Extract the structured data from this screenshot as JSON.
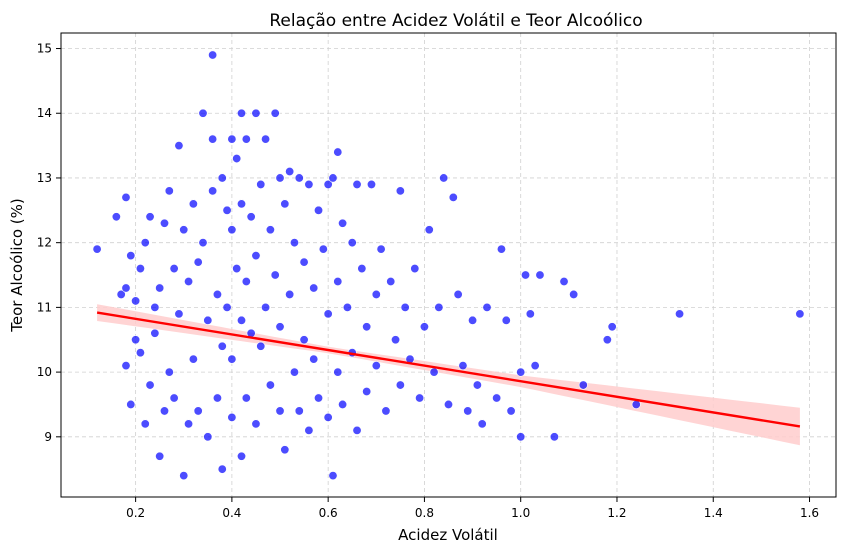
{
  "chart_data": {
    "type": "scatter",
    "title": "Relação entre Acidez Volátil e Teor Alcoólico",
    "xlabel": "Acidez Volátil",
    "ylabel": "Teor Alcoólico (%)",
    "xlim": [
      0.045,
      1.655
    ],
    "ylim": [
      8.07,
      15.24
    ],
    "xticks": [
      0.2,
      0.4,
      0.6,
      0.8,
      1.0,
      1.2,
      1.4,
      1.6
    ],
    "xtick_labels": [
      "0.2",
      "0.4",
      "0.6",
      "0.8",
      "1.0",
      "1.2",
      "1.4",
      "1.6"
    ],
    "yticks": [
      9,
      10,
      11,
      12,
      13,
      14,
      15
    ],
    "ytick_labels": [
      "9",
      "10",
      "11",
      "12",
      "13",
      "14",
      "15"
    ],
    "grid": true,
    "point_color": "#0000ff",
    "regression": {
      "x": [
        0.12,
        1.58
      ],
      "y": [
        10.92,
        9.16
      ],
      "line_color": "#ff0000",
      "band_color": "#ffcccc",
      "band_halfwidth_at_x": [
        [
          0.12,
          0.13
        ],
        [
          0.6,
          0.05
        ],
        [
          1.0,
          0.09
        ],
        [
          1.58,
          0.29
        ]
      ]
    },
    "points": [
      [
        0.12,
        11.9
      ],
      [
        0.16,
        12.4
      ],
      [
        0.17,
        11.2
      ],
      [
        0.18,
        12.7
      ],
      [
        0.18,
        11.3
      ],
      [
        0.18,
        10.1
      ],
      [
        0.19,
        9.5
      ],
      [
        0.19,
        11.8
      ],
      [
        0.2,
        10.5
      ],
      [
        0.2,
        11.1
      ],
      [
        0.21,
        10.3
      ],
      [
        0.21,
        11.6
      ],
      [
        0.22,
        12.0
      ],
      [
        0.22,
        9.2
      ],
      [
        0.23,
        12.4
      ],
      [
        0.23,
        9.8
      ],
      [
        0.24,
        11.0
      ],
      [
        0.24,
        10.6
      ],
      [
        0.25,
        8.7
      ],
      [
        0.25,
        11.3
      ],
      [
        0.26,
        12.3
      ],
      [
        0.26,
        9.4
      ],
      [
        0.27,
        10.0
      ],
      [
        0.27,
        12.8
      ],
      [
        0.28,
        11.6
      ],
      [
        0.28,
        9.6
      ],
      [
        0.29,
        13.5
      ],
      [
        0.29,
        10.9
      ],
      [
        0.3,
        12.2
      ],
      [
        0.3,
        8.4
      ],
      [
        0.31,
        11.4
      ],
      [
        0.31,
        9.2
      ],
      [
        0.32,
        12.6
      ],
      [
        0.32,
        10.2
      ],
      [
        0.33,
        11.7
      ],
      [
        0.33,
        9.4
      ],
      [
        0.34,
        14.0
      ],
      [
        0.34,
        12.0
      ],
      [
        0.35,
        10.8
      ],
      [
        0.35,
        9.0
      ],
      [
        0.36,
        14.9
      ],
      [
        0.36,
        13.6
      ],
      [
        0.36,
        12.8
      ],
      [
        0.37,
        11.2
      ],
      [
        0.37,
        9.6
      ],
      [
        0.38,
        13.0
      ],
      [
        0.38,
        10.4
      ],
      [
        0.38,
        8.5
      ],
      [
        0.39,
        12.5
      ],
      [
        0.39,
        11.0
      ],
      [
        0.4,
        13.6
      ],
      [
        0.4,
        12.2
      ],
      [
        0.4,
        10.2
      ],
      [
        0.4,
        9.3
      ],
      [
        0.41,
        13.3
      ],
      [
        0.41,
        11.6
      ],
      [
        0.42,
        14.0
      ],
      [
        0.42,
        12.6
      ],
      [
        0.42,
        10.8
      ],
      [
        0.42,
        8.7
      ],
      [
        0.43,
        13.6
      ],
      [
        0.43,
        11.4
      ],
      [
        0.43,
        9.6
      ],
      [
        0.44,
        12.4
      ],
      [
        0.44,
        10.6
      ],
      [
        0.45,
        14.0
      ],
      [
        0.45,
        11.8
      ],
      [
        0.45,
        9.2
      ],
      [
        0.46,
        12.9
      ],
      [
        0.46,
        10.4
      ],
      [
        0.47,
        13.6
      ],
      [
        0.47,
        11.0
      ],
      [
        0.48,
        12.2
      ],
      [
        0.48,
        9.8
      ],
      [
        0.49,
        14.0
      ],
      [
        0.49,
        11.5
      ],
      [
        0.5,
        13.0
      ],
      [
        0.5,
        10.7
      ],
      [
        0.5,
        9.4
      ],
      [
        0.51,
        12.6
      ],
      [
        0.51,
        8.8
      ],
      [
        0.52,
        13.1
      ],
      [
        0.52,
        11.2
      ],
      [
        0.53,
        10.0
      ],
      [
        0.53,
        12.0
      ],
      [
        0.54,
        13.0
      ],
      [
        0.54,
        9.4
      ],
      [
        0.55,
        11.7
      ],
      [
        0.55,
        10.5
      ],
      [
        0.56,
        12.9
      ],
      [
        0.56,
        9.1
      ],
      [
        0.57,
        11.3
      ],
      [
        0.57,
        10.2
      ],
      [
        0.58,
        12.5
      ],
      [
        0.58,
        9.6
      ],
      [
        0.59,
        11.9
      ],
      [
        0.6,
        12.9
      ],
      [
        0.6,
        10.9
      ],
      [
        0.6,
        9.3
      ],
      [
        0.61,
        13.0
      ],
      [
        0.61,
        8.4
      ],
      [
        0.62,
        13.4
      ],
      [
        0.62,
        11.4
      ],
      [
        0.62,
        10.0
      ],
      [
        0.63,
        12.3
      ],
      [
        0.63,
        9.5
      ],
      [
        0.64,
        11.0
      ],
      [
        0.65,
        12.0
      ],
      [
        0.65,
        10.3
      ],
      [
        0.66,
        12.9
      ],
      [
        0.66,
        9.1
      ],
      [
        0.67,
        11.6
      ],
      [
        0.68,
        10.7
      ],
      [
        0.68,
        9.7
      ],
      [
        0.69,
        12.9
      ],
      [
        0.7,
        11.2
      ],
      [
        0.7,
        10.1
      ],
      [
        0.71,
        11.9
      ],
      [
        0.72,
        9.4
      ],
      [
        0.73,
        11.4
      ],
      [
        0.74,
        10.5
      ],
      [
        0.75,
        12.8
      ],
      [
        0.75,
        9.8
      ],
      [
        0.76,
        11.0
      ],
      [
        0.77,
        10.2
      ],
      [
        0.78,
        11.6
      ],
      [
        0.79,
        9.6
      ],
      [
        0.8,
        10.7
      ],
      [
        0.81,
        12.2
      ],
      [
        0.82,
        10.0
      ],
      [
        0.83,
        11.0
      ],
      [
        0.84,
        13.0
      ],
      [
        0.85,
        9.5
      ],
      [
        0.86,
        12.7
      ],
      [
        0.87,
        11.2
      ],
      [
        0.88,
        10.1
      ],
      [
        0.89,
        9.4
      ],
      [
        0.9,
        10.8
      ],
      [
        0.91,
        9.8
      ],
      [
        0.92,
        9.2
      ],
      [
        0.93,
        11.0
      ],
      [
        0.95,
        9.6
      ],
      [
        0.96,
        11.9
      ],
      [
        0.97,
        10.8
      ],
      [
        0.98,
        9.4
      ],
      [
        1.0,
        10.0
      ],
      [
        1.0,
        9.0
      ],
      [
        1.01,
        11.5
      ],
      [
        1.02,
        10.9
      ],
      [
        1.03,
        10.1
      ],
      [
        1.04,
        11.5
      ],
      [
        1.07,
        9.0
      ],
      [
        1.09,
        11.4
      ],
      [
        1.11,
        11.2
      ],
      [
        1.13,
        9.8
      ],
      [
        1.18,
        10.5
      ],
      [
        1.19,
        10.7
      ],
      [
        1.24,
        9.5
      ],
      [
        1.33,
        10.9
      ],
      [
        1.58,
        10.9
      ]
    ]
  }
}
